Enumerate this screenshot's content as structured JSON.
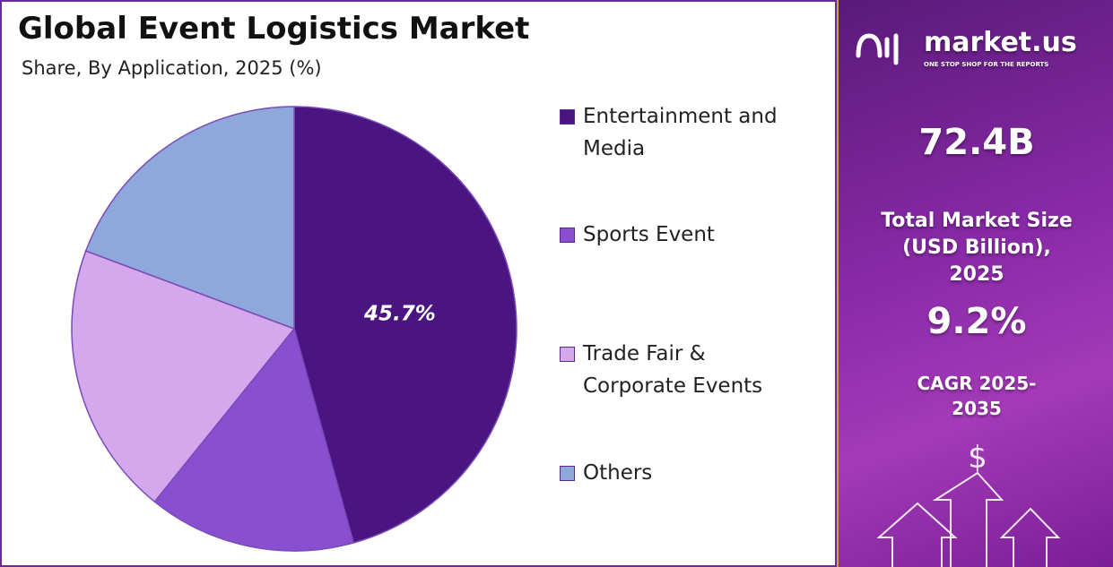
{
  "chart_data": {
    "type": "pie",
    "title": "Global Event Logistics Market",
    "subtitle": "Share, By Application, 2025 (%)",
    "categories": [
      "Entertainment and Media",
      "Sports Event",
      "Trade Fair & Corporate Events",
      "Others"
    ],
    "values": [
      45.7,
      15.1,
      19.9,
      19.3
    ],
    "value_labels": [
      "45.7%",
      null,
      null,
      null
    ],
    "colors": [
      "#4a1580",
      "#8a4fd0",
      "#d4a8ec",
      "#8fa8dc"
    ]
  },
  "sidebar": {
    "brand": "market.us",
    "tagline": "ONE STOP SHOP FOR THE REPORTS",
    "market_size": "72.4B",
    "market_size_label": "Total Market Size (USD Billion), 2025",
    "cagr": "9.2%",
    "cagr_label": "CAGR 2025-2035"
  }
}
